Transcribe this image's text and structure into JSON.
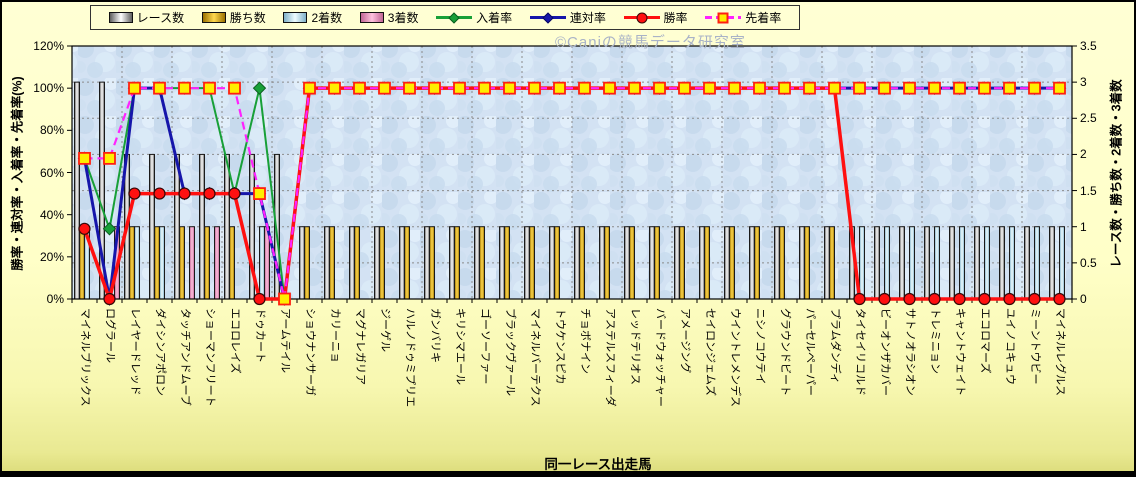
{
  "watermark": "©Caniの競馬データ研究室",
  "x_axis_title": "同一レース出走馬",
  "left_axis": {
    "title": "勝率・連対率・入着率・先着率(%)",
    "ticks": [
      "0%",
      "20%",
      "40%",
      "60%",
      "80%",
      "100%",
      "120%"
    ],
    "min": 0,
    "max": 120
  },
  "right_axis": {
    "title": "レース数・勝ち数・2着数・3着数",
    "ticks": [
      "0",
      "0.5",
      "1",
      "1.5",
      "2",
      "2.5",
      "3",
      "3.5"
    ],
    "min": 0,
    "max": 3.5
  },
  "chart_data": {
    "type": "combo-bar-line",
    "grid": {
      "horizontal_step_right_axis": 0.5,
      "vertical_every_categories": 2
    },
    "plot_fill": "#d3e2f3",
    "categories": [
      "マイネルブリックス",
      "ログラール",
      "レイヤードレッド",
      "ダイシンアポロン",
      "タッチアンドムーブ",
      "ショーマンフリート",
      "エコロレイズ",
      "ドゥカート",
      "アームテイル",
      "ショウナンサーガ",
      "カリーニョ",
      "マグナレガリア",
      "ジーゲル",
      "ハルノドゥミプリエ",
      "ガンバリキ",
      "キリシマエール",
      "ゴーソーファー",
      "ブラックヴァール",
      "マイネルバーテクス",
      "トウケンスピカ",
      "チョボナイン",
      "アステルスフィーダ",
      "レッドテリオス",
      "バードウォッチャー",
      "アメージング",
      "セイロンジェムズ",
      "ウイントレメンデス",
      "ニシノコウテイ",
      "グラウンドビート",
      "パーセルペーパー",
      "プラムダンディ",
      "タイセイリコルド",
      "ビーオンザカバー",
      "サトノオラシオン",
      "トレミニョン",
      "キャントウェイト",
      "エコロマーズ",
      "ユイノコキュウ",
      "ミーントウビー",
      "マイネルレグルス"
    ],
    "bar_series": [
      {
        "name": "レース数",
        "edge": "#5f5f5f",
        "center": "#ffffff",
        "values": [
          3,
          3,
          2,
          2,
          2,
          2,
          2,
          2,
          2,
          1,
          1,
          1,
          1,
          1,
          1,
          1,
          1,
          1,
          1,
          1,
          1,
          1,
          1,
          1,
          1,
          1,
          1,
          1,
          1,
          1,
          1,
          1,
          1,
          1,
          1,
          1,
          1,
          1,
          1,
          1
        ]
      },
      {
        "name": "勝ち数",
        "edge": "#9a7000",
        "center": "#ffd84e",
        "values": [
          1,
          0,
          1,
          1,
          1,
          1,
          1,
          0,
          0,
          1,
          1,
          1,
          1,
          1,
          1,
          1,
          1,
          1,
          1,
          1,
          1,
          1,
          1,
          1,
          1,
          1,
          1,
          1,
          1,
          1,
          1,
          0,
          0,
          0,
          0,
          0,
          0,
          0,
          0,
          0
        ]
      },
      {
        "name": "2着数",
        "edge": "#7fb0c8",
        "center": "#eefcff",
        "values": [
          1,
          0,
          1,
          1,
          0,
          0,
          0,
          1,
          0,
          0,
          0,
          0,
          0,
          0,
          0,
          0,
          0,
          0,
          0,
          0,
          0,
          0,
          0,
          0,
          0,
          0,
          0,
          0,
          0,
          0,
          0,
          1,
          1,
          1,
          1,
          1,
          1,
          1,
          1,
          1
        ]
      },
      {
        "name": "3着数",
        "edge": "#c06494",
        "center": "#ffc2de",
        "values": [
          0,
          1,
          0,
          0,
          1,
          1,
          0,
          1,
          0,
          0,
          0,
          0,
          0,
          0,
          0,
          0,
          0,
          0,
          0,
          0,
          0,
          0,
          0,
          0,
          0,
          0,
          0,
          0,
          0,
          0,
          0,
          0,
          0,
          0,
          0,
          0,
          0,
          0,
          0,
          0
        ]
      }
    ],
    "line_series": [
      {
        "name": "入着率",
        "color": "#18a038",
        "marker": "diamond",
        "marker_edge": "#0b5c20",
        "width": 2,
        "dash": null,
        "values": [
          66.7,
          33.3,
          100,
          100,
          100,
          100,
          50,
          100,
          0,
          100,
          100,
          100,
          100,
          100,
          100,
          100,
          100,
          100,
          100,
          100,
          100,
          100,
          100,
          100,
          100,
          100,
          100,
          100,
          100,
          100,
          100,
          100,
          100,
          100,
          100,
          100,
          100,
          100,
          100,
          100
        ]
      },
      {
        "name": "連対率",
        "color": "#1616aa",
        "marker": "diamond",
        "marker_edge": "#0a0a60",
        "width": 3,
        "dash": null,
        "values": [
          66.7,
          0,
          100,
          100,
          50,
          50,
          50,
          50,
          0,
          100,
          100,
          100,
          100,
          100,
          100,
          100,
          100,
          100,
          100,
          100,
          100,
          100,
          100,
          100,
          100,
          100,
          100,
          100,
          100,
          100,
          100,
          100,
          100,
          100,
          100,
          100,
          100,
          100,
          100,
          100
        ]
      },
      {
        "name": "勝率",
        "color": "#ff1010",
        "marker": "circle",
        "marker_edge": "#330808",
        "width": 3.5,
        "dash": null,
        "values": [
          33.3,
          0,
          50,
          50,
          50,
          50,
          50,
          0,
          0,
          100,
          100,
          100,
          100,
          100,
          100,
          100,
          100,
          100,
          100,
          100,
          100,
          100,
          100,
          100,
          100,
          100,
          100,
          100,
          100,
          100,
          100,
          0,
          0,
          0,
          0,
          0,
          0,
          0,
          0,
          0
        ]
      },
      {
        "name": "先着率",
        "color": "#ff22ff",
        "marker": "square",
        "marker_edge": "#ff2010",
        "width": 2.2,
        "dash": "8,5",
        "values": [
          66.7,
          66.7,
          100,
          100,
          100,
          100,
          100,
          50,
          0,
          100,
          100,
          100,
          100,
          100,
          100,
          100,
          100,
          100,
          100,
          100,
          100,
          100,
          100,
          100,
          100,
          100,
          100,
          100,
          100,
          100,
          100,
          100,
          100,
          100,
          100,
          100,
          100,
          100,
          100,
          100
        ]
      }
    ]
  }
}
